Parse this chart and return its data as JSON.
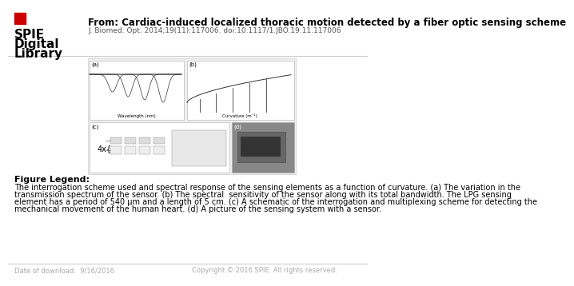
{
  "bg_color": "#ffffff",
  "title_text": "From: Cardiac-induced localized thoracic motion detected by a fiber optic sensing scheme",
  "subtitle_text": "J. Biomed. Opt. 2014;19(11):117006. doi:10.1117/1.JBO.19.11.117006",
  "spie_logo_text_lines": [
    "SPIE",
    "Digital",
    "Library"
  ],
  "spie_logo_red_box_color": "#cc0000",
  "header_line_color": "#cccccc",
  "figure_legend_title": "Figure Legend:",
  "figure_legend_lines": [
    "The interrogation scheme used and spectral response of the sensing elements as a function of curvature. (a) The variation in the",
    "transmission spectrum of the sensor. (b) The spectral  sensitivity of the sensor along with its total bandwidth. The LPG sensing",
    "element has a period of 540 μm and a length of 5 cm. (c) A schematic of the interrogation and multiplexing scheme for detecting the",
    "mechanical movement of the human heart. (d) A picture of the sensing system with a sensor."
  ],
  "footer_text_left": "Date of download:  9/16/2016",
  "footer_text_right": "Copyright © 2016 SPIE. All rights reserved.",
  "footer_color": "#aaaaaa",
  "footer_line_color": "#cccccc",
  "title_fontsize": 8.5,
  "subtitle_fontsize": 6.5,
  "legend_title_fontsize": 8,
  "legend_body_fontsize": 7,
  "footer_fontsize": 6
}
